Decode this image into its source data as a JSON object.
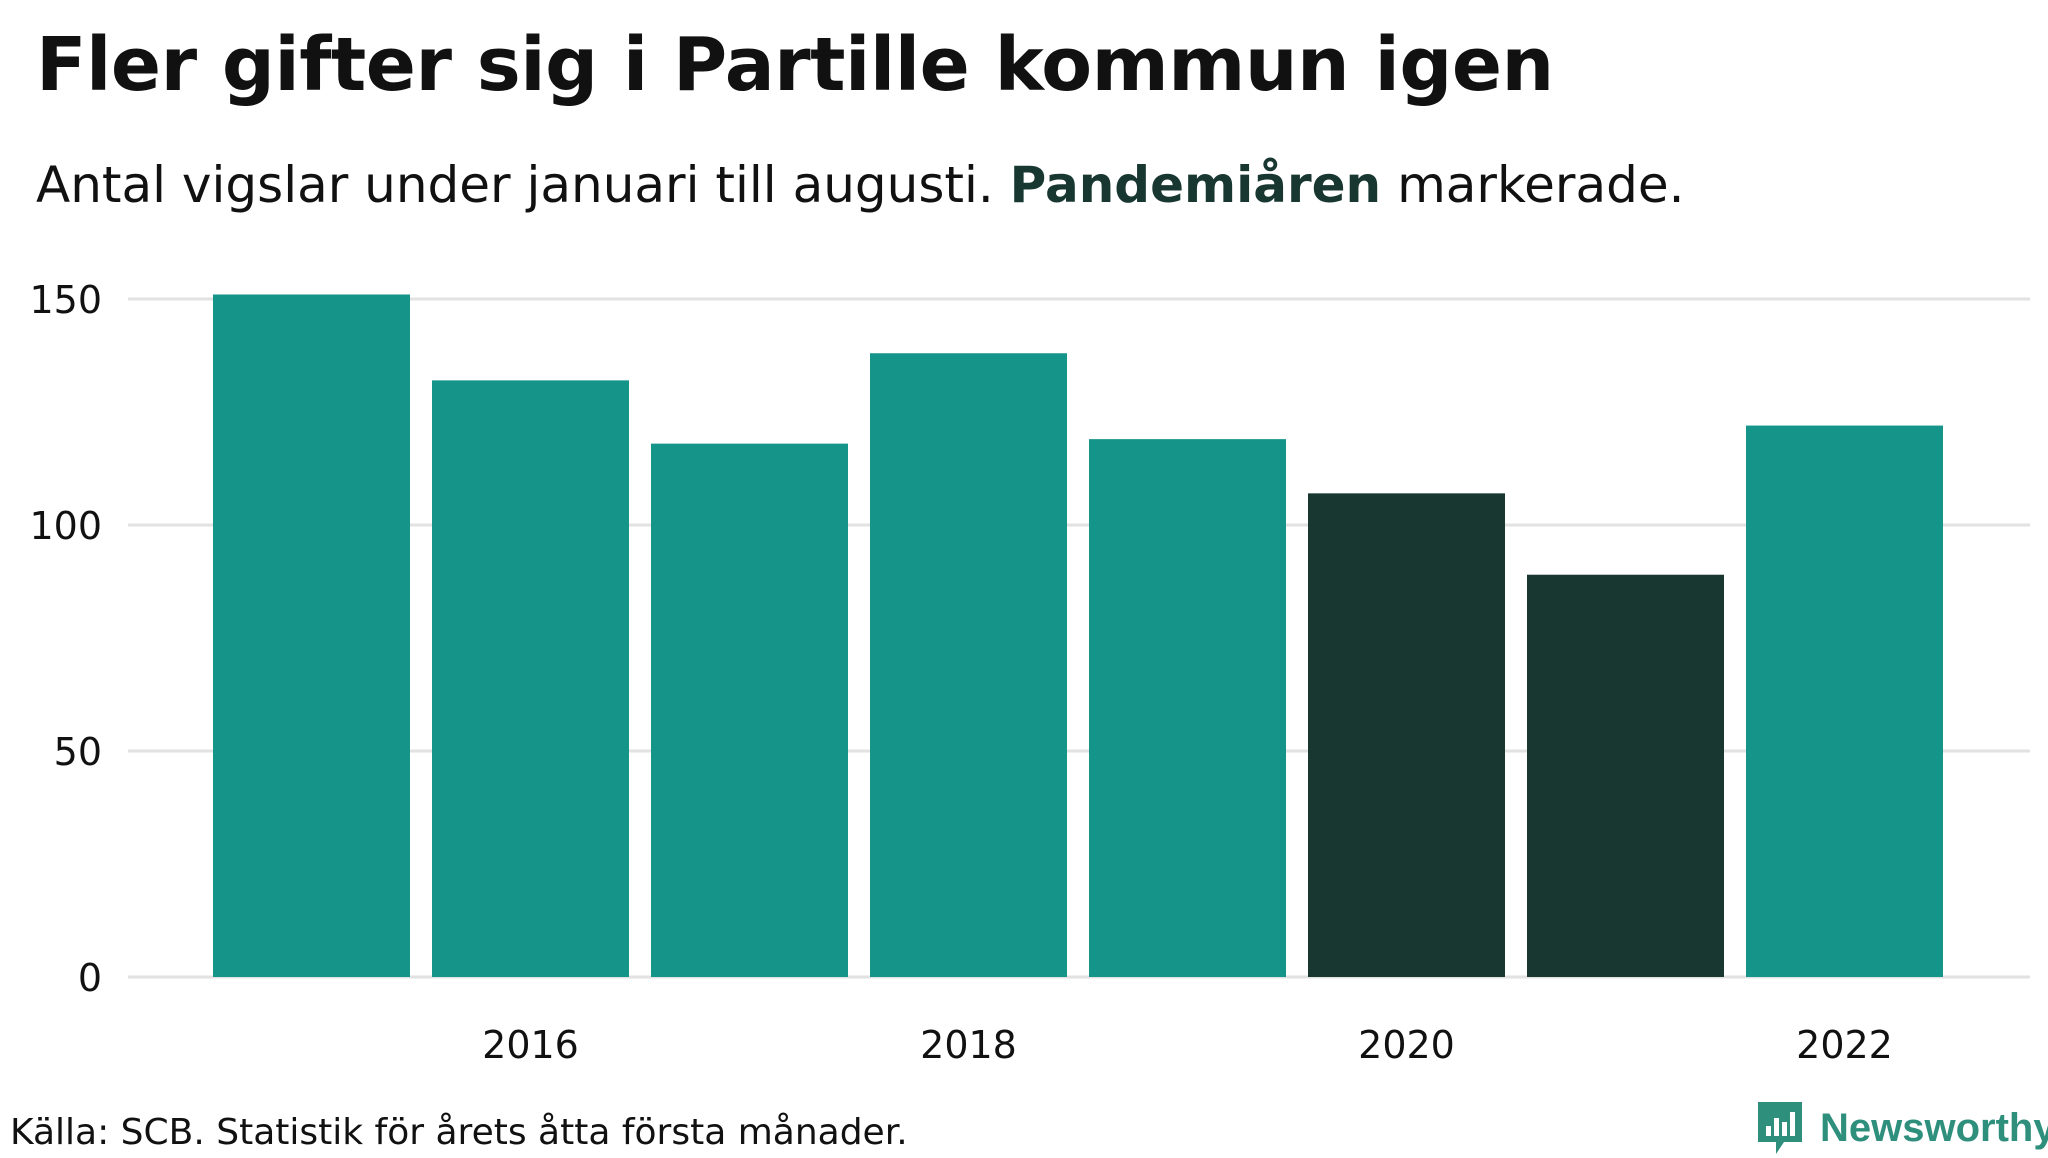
{
  "title": "Fler gifter sig i Partille kommun igen",
  "subtitle": {
    "prefix": "Antal vigslar under januari till augusti.",
    "highlight": "Pandemiåren",
    "suffix": "markerade."
  },
  "footer": {
    "source": "Källa: SCB. Statistik för årets åtta första månader."
  },
  "brand": {
    "name": "Newsworthy",
    "icon": "newsworthy-logo-icon"
  },
  "colors": {
    "bar": "#15958a",
    "bar_highlight": "#183731",
    "grid": "#e2e2e2",
    "brand": "#2f8f7d"
  },
  "chart_data": {
    "type": "bar",
    "categories": [
      "2015",
      "2016",
      "2017",
      "2018",
      "2019",
      "2020",
      "2021",
      "2022"
    ],
    "values": [
      151,
      132,
      118,
      138,
      119,
      107,
      89,
      122
    ],
    "highlighted": [
      "2020",
      "2021"
    ],
    "x_tick_labels": [
      "2016",
      "2018",
      "2020",
      "2022"
    ],
    "y_ticks": [
      0,
      50,
      100,
      150
    ],
    "ylim": [
      0,
      155
    ],
    "xlabel": "",
    "ylabel": "",
    "grid": true
  }
}
